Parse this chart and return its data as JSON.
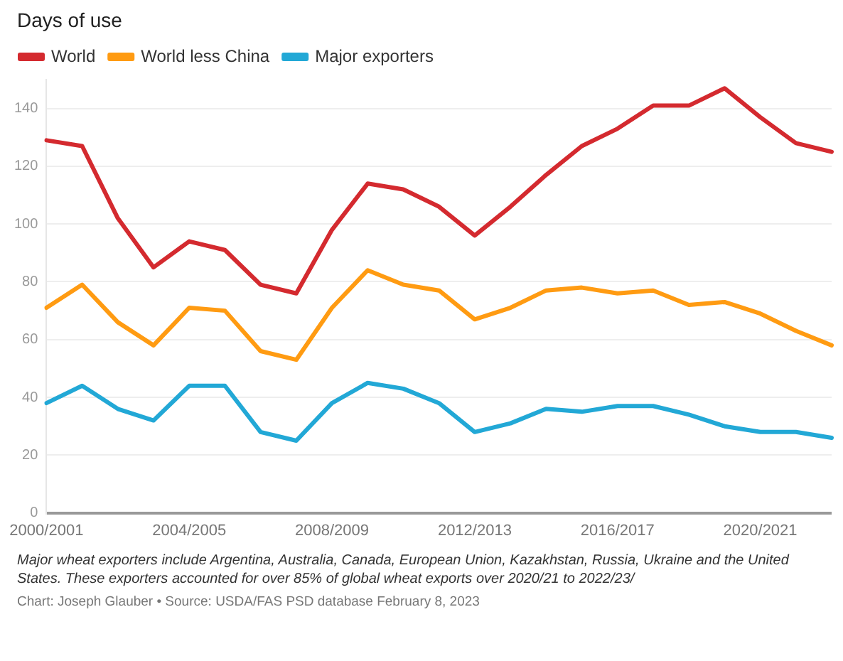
{
  "chart_data": {
    "type": "line",
    "title": "Days of use",
    "categories": [
      "2000/2001",
      null,
      null,
      null,
      "2004/2005",
      null,
      null,
      null,
      "2008/2009",
      null,
      null,
      null,
      "2012/2013",
      null,
      null,
      null,
      "2016/2017",
      null,
      null,
      null,
      "2020/2021",
      null,
      null
    ],
    "series": [
      {
        "name": "World",
        "color": "#d42a2f",
        "values": [
          129,
          127,
          102,
          85,
          94,
          91,
          79,
          76,
          98,
          114,
          112,
          106,
          96,
          106,
          117,
          127,
          133,
          141,
          141,
          147,
          137,
          128,
          125
        ]
      },
      {
        "name": "World less China",
        "color": "#ff9b12",
        "values": [
          71,
          79,
          66,
          58,
          71,
          70,
          56,
          53,
          71,
          84,
          79,
          77,
          67,
          71,
          77,
          78,
          76,
          77,
          72,
          73,
          69,
          63,
          58
        ]
      },
      {
        "name": "Major exporters",
        "color": "#22a8d6",
        "values": [
          38,
          44,
          36,
          32,
          44,
          44,
          28,
          25,
          38,
          45,
          43,
          38,
          28,
          31,
          36,
          35,
          37,
          37,
          34,
          30,
          28,
          28,
          26
        ]
      }
    ],
    "ylim": [
      0,
      150
    ],
    "yticks": [
      0,
      20,
      40,
      60,
      80,
      100,
      120,
      140
    ],
    "grid": "y",
    "legend": "top left",
    "marker": "none",
    "line_style": "solid",
    "annotations": [
      "Major wheat exporters include Argentina, Australia, Canada, European Union, Kazakhstan, Russia, Ukraine and the United States. These exporters accounted for over 85% of global wheat exports over 2020/21 to 2022/23/",
      "Chart: Joseph Glauber • Source: USDA/FAS PSD database February 8, 2023"
    ]
  }
}
